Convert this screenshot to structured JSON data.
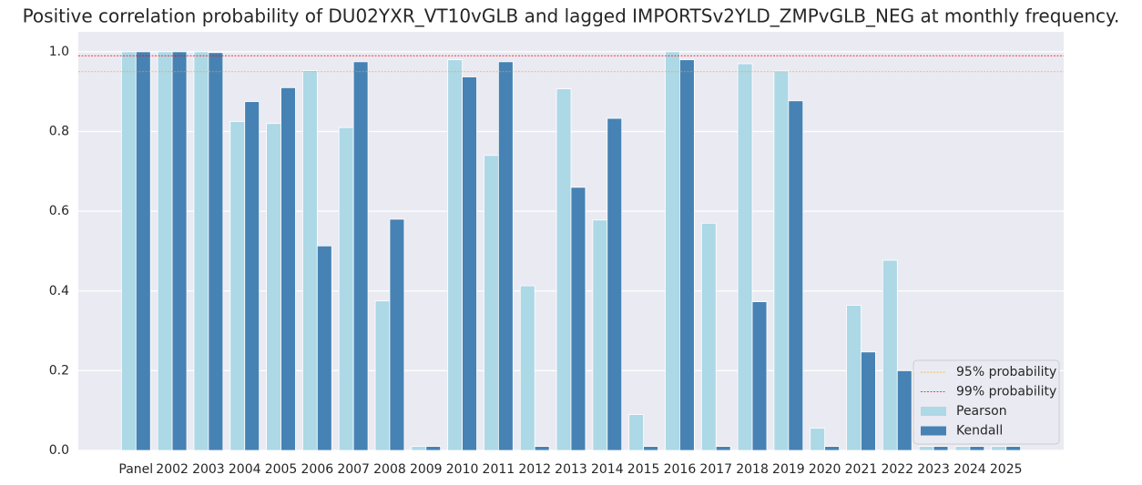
{
  "chart_data": {
    "type": "bar",
    "title": "Positive correlation probability of DU02YXR_VT10vGLB and lagged IMPORTSv2YLD_ZMPvGLB_NEG at monthly frequency.",
    "categories": [
      "Panel",
      "2002",
      "2003",
      "2004",
      "2005",
      "2006",
      "2007",
      "2008",
      "2009",
      "2010",
      "2011",
      "2012",
      "2013",
      "2014",
      "2015",
      "2016",
      "2017",
      "2018",
      "2019",
      "2020",
      "2021",
      "2022",
      "2023",
      "2024",
      "2025"
    ],
    "series": [
      {
        "name": "Pearson",
        "color": "#add8e6",
        "values": [
          1.0,
          1.0,
          1.0,
          0.825,
          0.82,
          0.953,
          0.81,
          0.375,
          0.01,
          0.98,
          0.74,
          0.413,
          0.907,
          0.578,
          0.09,
          1.0,
          0.57,
          0.97,
          0.952,
          0.056,
          0.364,
          0.477,
          0.01,
          0.01,
          0.01
        ]
      },
      {
        "name": "Kendall",
        "color": "#4682b4",
        "values": [
          1.0,
          1.0,
          0.998,
          0.875,
          0.91,
          0.513,
          0.975,
          0.58,
          0.01,
          0.937,
          0.975,
          0.01,
          0.66,
          0.833,
          0.01,
          0.98,
          0.01,
          0.373,
          0.877,
          0.01,
          0.247,
          0.2,
          0.01,
          0.01,
          0.01
        ]
      }
    ],
    "reference_lines": [
      {
        "name": "95% probability",
        "value": 0.95,
        "color": "#ffa500"
      },
      {
        "name": "99% probability",
        "value": 0.99,
        "color": "#ff0000"
      }
    ],
    "ylim": [
      0,
      1.05
    ],
    "yticks": [
      {
        "value": 0,
        "label": "0.0"
      },
      0.2,
      0.4,
      0.6,
      0.8,
      {
        "value": 1,
        "label": "1.0"
      }
    ],
    "grid": true,
    "legend_position": "lower right"
  }
}
